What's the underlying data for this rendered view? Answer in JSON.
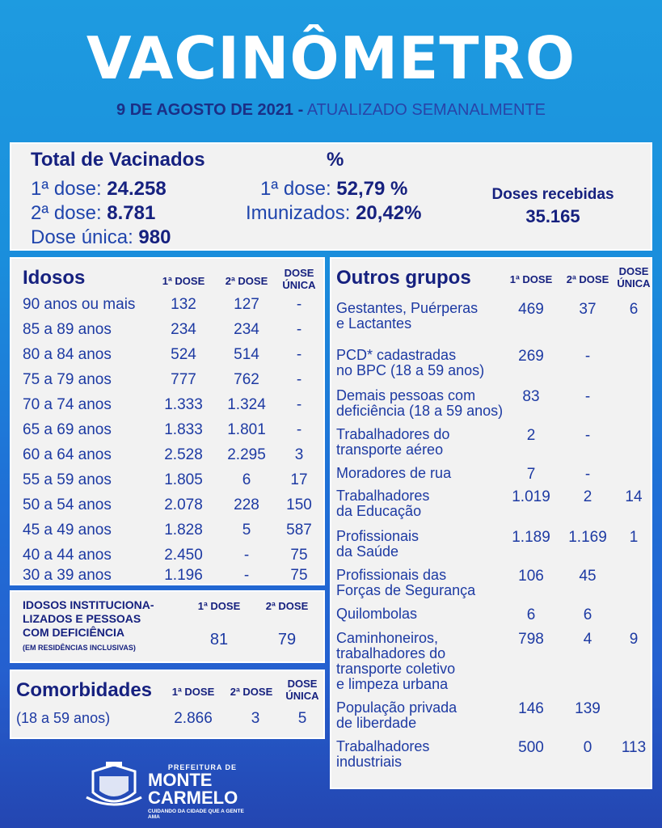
{
  "header": {
    "title": "VACINÔMETRO",
    "date": "9 DE AGOSTO DE 2021 -",
    "update_note": "ATUALIZADO SEMANALMENTE"
  },
  "totals": {
    "heading": "Total de Vacinados",
    "pct_heading": "%",
    "dose1_label": "1ª dose:",
    "dose1_value": "24.258",
    "dose2_label": "2ª dose:",
    "dose2_value": "8.781",
    "single_label": "Dose única:",
    "single_value": "980",
    "pct_dose1_label": "1ª dose:",
    "pct_dose1_value": "52,79 %",
    "pct_imm_label": "Imunizados:",
    "pct_imm_value": "20,42%",
    "received_label": "Doses recebidas",
    "received_value": "35.165"
  },
  "idosos": {
    "title": "Idosos",
    "col1": "1ª DOSE",
    "col2": "2ª DOSE",
    "col3": "DOSE ÚNICA",
    "rows": [
      {
        "label": "90 anos ou mais",
        "d1": "132",
        "d2": "127",
        "du": "-"
      },
      {
        "label": "85 a 89 anos",
        "d1": "234",
        "d2": "234",
        "du": "-"
      },
      {
        "label": "80 a 84 anos",
        "d1": "524",
        "d2": "514",
        "du": "-"
      },
      {
        "label": "75 a 79 anos",
        "d1": "777",
        "d2": "762",
        "du": "-"
      },
      {
        "label": "70 a 74 anos",
        "d1": "1.333",
        "d2": "1.324",
        "du": "-"
      },
      {
        "label": "65 a 69 anos",
        "d1": "1.833",
        "d2": "1.801",
        "du": "-"
      },
      {
        "label": "60 a 64 anos",
        "d1": "2.528",
        "d2": "2.295",
        "du": "3"
      },
      {
        "label": "55 a 59 anos",
        "d1": "1.805",
        "d2": "6",
        "du": "17"
      },
      {
        "label": "50 a 54 anos",
        "d1": "2.078",
        "d2": "228",
        "du": "150"
      },
      {
        "label": "45 a 49 anos",
        "d1": "1.828",
        "d2": "5",
        "du": "587"
      },
      {
        "label": "40 a 44 anos",
        "d1": "2.450",
        "d2": "-",
        "du": "75"
      },
      {
        "label": "30 a 39 anos",
        "d1": "1.196",
        "d2": "-",
        "du": "75"
      }
    ]
  },
  "institucional": {
    "title_l1": "IDOSOS INSTITUCIONA-",
    "title_l2": "LIZADOS E PESSOAS",
    "title_l3": "COM DEFICIÊNCIA",
    "subtitle": "(EM RESIDÊNCIAS INCLUSIVAS)",
    "col1": "1ª DOSE",
    "col2": "2ª DOSE",
    "d1": "81",
    "d2": "79"
  },
  "comorbidades": {
    "title": "Comorbidades",
    "col1": "1ª DOSE",
    "col2": "2ª DOSE",
    "col3": "DOSE ÚNICA",
    "label": "(18 a 59 anos)",
    "d1": "2.866",
    "d2": "3",
    "du": "5"
  },
  "outros": {
    "title": "Outros grupos",
    "col1": "1ª DOSE",
    "col2": "2ª DOSE",
    "col3": "DOSE ÚNICA",
    "rows": [
      {
        "label": "Gestantes, Puérperas\n e  Lactantes",
        "d1": "469",
        "d2": "37",
        "du": "6"
      },
      {
        "label": "PCD* cadastradas\nno BPC (18 a 59 anos)",
        "d1": "269",
        "d2": "-",
        "du": ""
      },
      {
        "label": "Demais pessoas com\ndeficiência (18 a 59 anos)",
        "d1": "83",
        "d2": "-",
        "du": ""
      },
      {
        "label": "Trabalhadores do\ntransporte aéreo",
        "d1": "2",
        "d2": "-",
        "du": ""
      },
      {
        "label": "Moradores de rua",
        "d1": "7",
        "d2": "-",
        "du": ""
      },
      {
        "label": "Trabalhadores\nda Educação",
        "d1": "1.019",
        "d2": "2",
        "du": "14"
      },
      {
        "label": "Profissionais\nda Saúde",
        "d1": "1.189",
        "d2": "1.169",
        "du": "1"
      },
      {
        "label": "Profissionais das\nForças de Segurança",
        "d1": "106",
        "d2": "45",
        "du": ""
      },
      {
        "label": "Quilombolas",
        "d1": "6",
        "d2": "6",
        "du": ""
      },
      {
        "label": "Caminhoneiros,\ntrabalhadores do\ntransporte coletivo\ne limpeza urbana",
        "d1": "798",
        "d2": "4",
        "du": "9"
      },
      {
        "label": "População privada\nde liberdade",
        "d1": "146",
        "d2": "139",
        "du": ""
      },
      {
        "label": "Trabalhadores\nindustriais",
        "d1": "500",
        "d2": "0",
        "du": "113"
      }
    ]
  },
  "logo": {
    "prefix": "PREFEITURA DE",
    "name_l1": "MONTE",
    "name_l2": "CARMELO",
    "slogan": "CUIDANDO DA CIDADE QUE A GENTE AMA",
    "icon": "city-crest-icon"
  }
}
